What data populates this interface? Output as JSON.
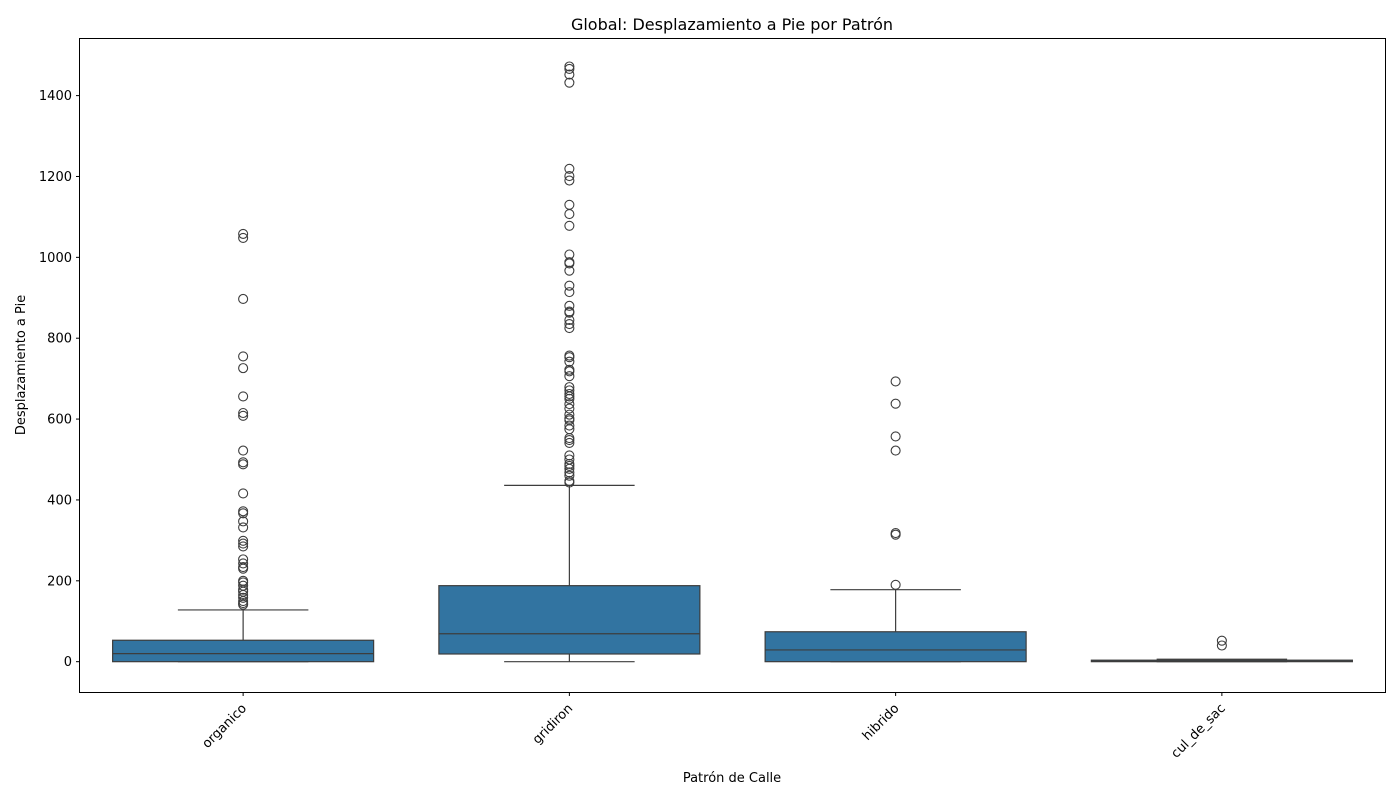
{
  "chart_data": {
    "type": "box",
    "title": "Global: Desplazamiento a Pie por Patrón",
    "xlabel": "Patrón de Calle",
    "ylabel": "Desplazamiento a Pie",
    "ylim": [
      -75,
      1540
    ],
    "yticks": [
      0,
      200,
      400,
      600,
      800,
      1000,
      1200,
      1400
    ],
    "grid": false,
    "legend": "none",
    "box_color": "#3274a1",
    "line_color": "#3d3d3d",
    "categories": [
      "organico",
      "gridiron",
      "hibrido",
      "cul_de_sac"
    ],
    "boxes": [
      {
        "category": "organico",
        "whislo": 0,
        "q1": 0,
        "median": 20,
        "q3": 53,
        "whishi": 128,
        "fliers": [
          1058,
          1048,
          897,
          755,
          726,
          656,
          615,
          608,
          522,
          493,
          488,
          416,
          372,
          367,
          347,
          332,
          299,
          292,
          285,
          253,
          243,
          234,
          230,
          200,
          196,
          188,
          178,
          173,
          165,
          158,
          150,
          145,
          141
        ]
      },
      {
        "category": "gridiron",
        "whislo": 0,
        "q1": 19,
        "median": 69,
        "q3": 188,
        "whishi": 436,
        "fliers": [
          1472,
          1466,
          1452,
          1432,
          1219,
          1201,
          1190,
          1130,
          1107,
          1078,
          1007,
          988,
          985,
          967,
          930,
          914,
          880,
          866,
          863,
          845,
          835,
          825,
          757,
          753,
          742,
          722,
          718,
          706,
          679,
          671,
          662,
          656,
          650,
          637,
          626,
          611,
          601,
          597,
          584,
          575,
          553,
          548,
          541,
          510,
          500,
          489,
          484,
          477,
          468,
          460,
          447,
          443
        ]
      },
      {
        "category": "hibrido",
        "whislo": 0,
        "q1": 0,
        "median": 29,
        "q3": 74,
        "whishi": 178,
        "fliers": [
          693,
          638,
          557,
          522,
          318,
          314,
          190
        ]
      },
      {
        "category": "cul_de_sac",
        "whislo": 0,
        "q1": 0,
        "median": 1,
        "q3": 2,
        "whishi": 6,
        "fliers": [
          52,
          40
        ]
      }
    ]
  }
}
